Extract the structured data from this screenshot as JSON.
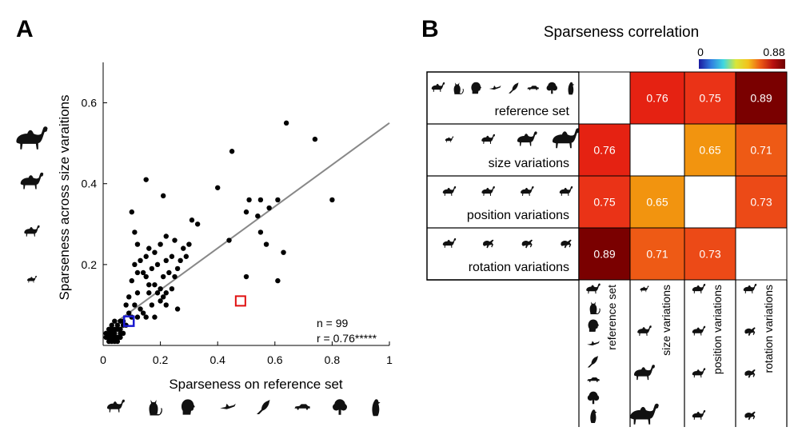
{
  "panel_a": {
    "letter": "A",
    "stats": {
      "n_text": "n = 99",
      "r_text": "r = 0.76*****"
    },
    "silhouettes_y": [
      "camel-large-icon",
      "camel-medium-icon",
      "camel-small-icon",
      "camel-tiny-icon"
    ],
    "silhouettes_x": [
      "camel-icon",
      "cat-icon",
      "human-head-icon",
      "bird-flying-icon",
      "crow-icon",
      "car-icon",
      "tree-icon",
      "penguin-icon"
    ]
  },
  "panel_b": {
    "letter": "B",
    "title": "Sparseness correlation",
    "colorbar": {
      "min_label": "0",
      "max_label": "0.88",
      "colors": [
        "#1a1aa0",
        "#2f7fe0",
        "#3fd7e0",
        "#d8e63a",
        "#f3c21c",
        "#ec5a14",
        "#b81010",
        "#6e0000"
      ]
    },
    "rows": [
      {
        "label": "reference set",
        "icons": [
          "camel-icon",
          "cat-icon",
          "human-head-icon",
          "bird-flying-icon",
          "crow-icon",
          "car-icon",
          "tree-icon",
          "penguin-icon"
        ]
      },
      {
        "label": "size variations",
        "icons": [
          "camel-tiny-icon",
          "camel-small-icon",
          "camel-medium-icon",
          "camel-large-icon"
        ]
      },
      {
        "label": "position variations",
        "icons": [
          "camel-icon",
          "camel-icon",
          "camel-icon",
          "camel-icon"
        ]
      },
      {
        "label": "rotation variations",
        "icons": [
          "camel-icon",
          "camel-rotated-icon",
          "camel-rotated-icon",
          "camel-rotated-icon"
        ]
      }
    ],
    "matrix_colors": {
      "0.65": "#f2940f",
      "0.71": "#ee5a15",
      "0.73": "#ec4a17",
      "0.75": "#ea3317",
      "0.76": "#e52212",
      "0.89": "#7a0000"
    }
  },
  "chart_data": [
    {
      "type": "scatter",
      "title": "",
      "xlabel": "Sparseness on reference set",
      "ylabel": "Sparseness across size varaitions",
      "xlim": [
        0,
        1
      ],
      "ylim": [
        0,
        0.7
      ],
      "xticks": [
        0,
        0.2,
        0.4,
        0.6,
        0.8,
        1
      ],
      "xtick_labels": [
        "0",
        "0.2",
        "0.4",
        "0.6",
        "0.8",
        "1"
      ],
      "yticks": [
        0.2,
        0.4,
        0.6
      ],
      "ytick_labels": [
        "0.2",
        "0.4",
        "0.6"
      ],
      "grid": false,
      "points": [
        [
          0.64,
          0.55
        ],
        [
          0.74,
          0.51
        ],
        [
          0.45,
          0.48
        ],
        [
          0.61,
          0.36
        ],
        [
          0.8,
          0.36
        ],
        [
          0.51,
          0.36
        ],
        [
          0.55,
          0.36
        ],
        [
          0.54,
          0.32
        ],
        [
          0.4,
          0.39
        ],
        [
          0.21,
          0.37
        ],
        [
          0.15,
          0.41
        ],
        [
          0.1,
          0.33
        ],
        [
          0.31,
          0.31
        ],
        [
          0.5,
          0.33
        ],
        [
          0.58,
          0.34
        ],
        [
          0.33,
          0.3
        ],
        [
          0.44,
          0.26
        ],
        [
          0.55,
          0.28
        ],
        [
          0.57,
          0.25
        ],
        [
          0.63,
          0.23
        ],
        [
          0.5,
          0.17
        ],
        [
          0.61,
          0.16
        ],
        [
          0.11,
          0.28
        ],
        [
          0.22,
          0.27
        ],
        [
          0.12,
          0.25
        ],
        [
          0.16,
          0.24
        ],
        [
          0.2,
          0.25
        ],
        [
          0.25,
          0.26
        ],
        [
          0.18,
          0.23
        ],
        [
          0.24,
          0.22
        ],
        [
          0.29,
          0.22
        ],
        [
          0.27,
          0.21
        ],
        [
          0.28,
          0.24
        ],
        [
          0.3,
          0.25
        ],
        [
          0.22,
          0.21
        ],
        [
          0.19,
          0.2
        ],
        [
          0.11,
          0.2
        ],
        [
          0.15,
          0.22
        ],
        [
          0.13,
          0.21
        ],
        [
          0.17,
          0.19
        ],
        [
          0.26,
          0.19
        ],
        [
          0.23,
          0.18
        ],
        [
          0.15,
          0.17
        ],
        [
          0.1,
          0.16
        ],
        [
          0.12,
          0.18
        ],
        [
          0.14,
          0.18
        ],
        [
          0.21,
          0.17
        ],
        [
          0.18,
          0.15
        ],
        [
          0.2,
          0.14
        ],
        [
          0.22,
          0.13
        ],
        [
          0.24,
          0.14
        ],
        [
          0.19,
          0.13
        ],
        [
          0.16,
          0.13
        ],
        [
          0.12,
          0.13
        ],
        [
          0.09,
          0.12
        ],
        [
          0.08,
          0.1
        ],
        [
          0.11,
          0.1
        ],
        [
          0.13,
          0.09
        ],
        [
          0.17,
          0.1
        ],
        [
          0.2,
          0.11
        ],
        [
          0.22,
          0.1
        ],
        [
          0.26,
          0.09
        ],
        [
          0.14,
          0.08
        ],
        [
          0.15,
          0.07
        ],
        [
          0.1,
          0.07
        ],
        [
          0.12,
          0.07
        ],
        [
          0.18,
          0.07
        ],
        [
          0.06,
          0.06
        ],
        [
          0.04,
          0.06
        ],
        [
          0.05,
          0.05
        ],
        [
          0.07,
          0.05
        ],
        [
          0.03,
          0.05
        ],
        [
          0.05,
          0.04
        ],
        [
          0.03,
          0.04
        ],
        [
          0.04,
          0.03
        ],
        [
          0.02,
          0.03
        ],
        [
          0.06,
          0.03
        ],
        [
          0.03,
          0.02
        ],
        [
          0.02,
          0.02
        ],
        [
          0.04,
          0.02
        ],
        [
          0.05,
          0.02
        ],
        [
          0.06,
          0.04
        ],
        [
          0.07,
          0.06
        ],
        [
          0.08,
          0.05
        ],
        [
          0.02,
          0.01
        ],
        [
          0.03,
          0.01
        ],
        [
          0.01,
          0.02
        ],
        [
          0.04,
          0.01
        ],
        [
          0.05,
          0.01
        ],
        [
          0.06,
          0.02
        ],
        [
          0.01,
          0.03
        ],
        [
          0.02,
          0.04
        ],
        [
          0.03,
          0.03
        ],
        [
          0.04,
          0.04
        ],
        [
          0.07,
          0.03
        ],
        [
          0.09,
          0.08
        ],
        [
          0.16,
          0.15
        ],
        [
          0.21,
          0.12
        ],
        [
          0.25,
          0.17
        ]
      ],
      "fit_line": {
        "x": [
          0.05,
          1.0
        ],
        "y": [
          0.06,
          0.55
        ]
      },
      "highlight_red": [
        0.48,
        0.11
      ],
      "highlight_blue": [
        0.09,
        0.06
      ]
    },
    {
      "type": "heatmap",
      "title": "Sparseness correlation",
      "rows": [
        "reference set",
        "size variations",
        "position variations",
        "rotation variations"
      ],
      "cols": [
        "reference set",
        "size variations",
        "position variations",
        "rotation variations"
      ],
      "values": [
        [
          null,
          0.76,
          0.75,
          0.89
        ],
        [
          0.76,
          null,
          0.65,
          0.71
        ],
        [
          0.75,
          0.65,
          null,
          0.73
        ],
        [
          0.89,
          0.71,
          0.73,
          null
        ]
      ],
      "value_labels": [
        [
          "",
          "0.76",
          "0.75",
          "0.89"
        ],
        [
          "0.76",
          "",
          "0.65",
          "0.71"
        ],
        [
          "0.75",
          "0.65",
          "",
          "0.73"
        ],
        [
          "0.89",
          "0.71",
          "0.73",
          ""
        ]
      ],
      "colorbar_range": [
        0,
        0.88
      ]
    }
  ]
}
